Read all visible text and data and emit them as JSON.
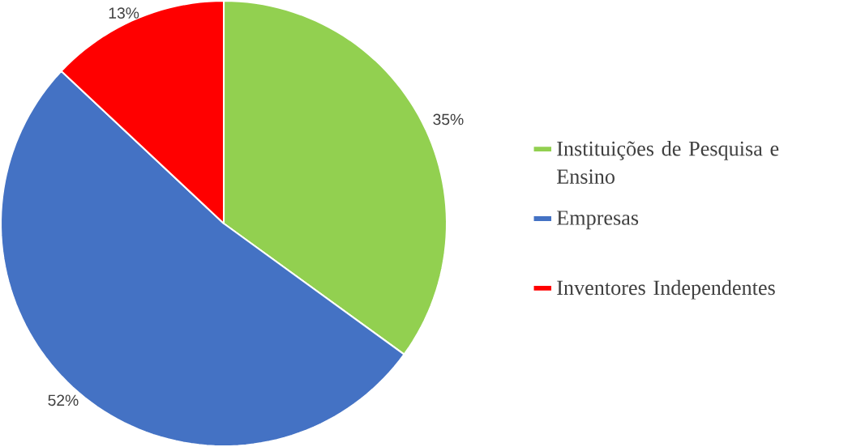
{
  "chart_data": {
    "type": "pie",
    "categories": [
      "Instituições de Pesquisa e Ensino",
      "Empresas",
      "Inventores Independentes"
    ],
    "values": [
      35,
      52,
      13
    ],
    "value_labels": [
      "35%",
      "52%",
      "13%"
    ],
    "colors": [
      "#92d050",
      "#4472c4",
      "#ff0000"
    ],
    "legend": "right"
  }
}
